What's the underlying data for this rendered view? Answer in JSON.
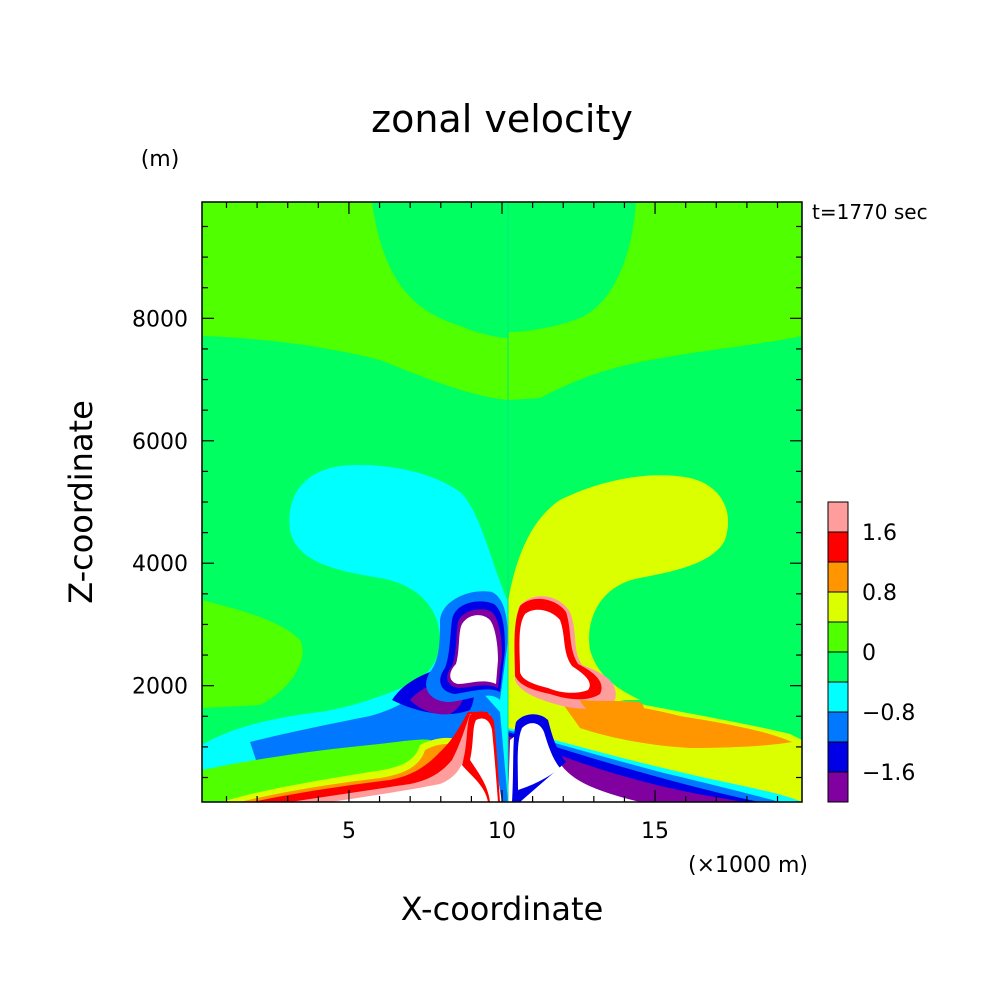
{
  "chart_data": {
    "type": "heatmap",
    "title": "zonal velocity",
    "xlabel": "X-coordinate",
    "ylabel": "Z-coordinate",
    "x_unit": "(×1000 m)",
    "y_unit": "(m)",
    "time_label": "t=1770 sec",
    "xlim": [
      0.2,
      19.8
    ],
    "ylim": [
      100,
      9900
    ],
    "x_ticks": [
      5,
      10,
      15
    ],
    "y_ticks": [
      2000,
      4000,
      6000,
      8000
    ],
    "x_tick_labels": [
      "5",
      "10",
      "15"
    ],
    "y_tick_labels": [
      "2000",
      "4000",
      "6000",
      "8000"
    ],
    "colorbar": {
      "levels": [
        -2.0,
        -1.6,
        -1.2,
        -0.8,
        -0.4,
        0,
        0.4,
        0.8,
        1.2,
        1.6,
        2.0
      ],
      "colors": [
        "#8000a0",
        "#0000e6",
        "#0078ff",
        "#00ffff",
        "#00ff60",
        "#50ff00",
        "#dcff00",
        "#ff9600",
        "#ff0000",
        "#ff9c9c"
      ],
      "tick_labels": [
        "-1.6",
        "-0.8",
        "0",
        "0.8",
        "1.6"
      ],
      "tick_values": [
        -1.6,
        -0.8,
        0,
        0.8,
        1.6
      ],
      "overflow_color": "#ffffff"
    },
    "grid": false
  }
}
